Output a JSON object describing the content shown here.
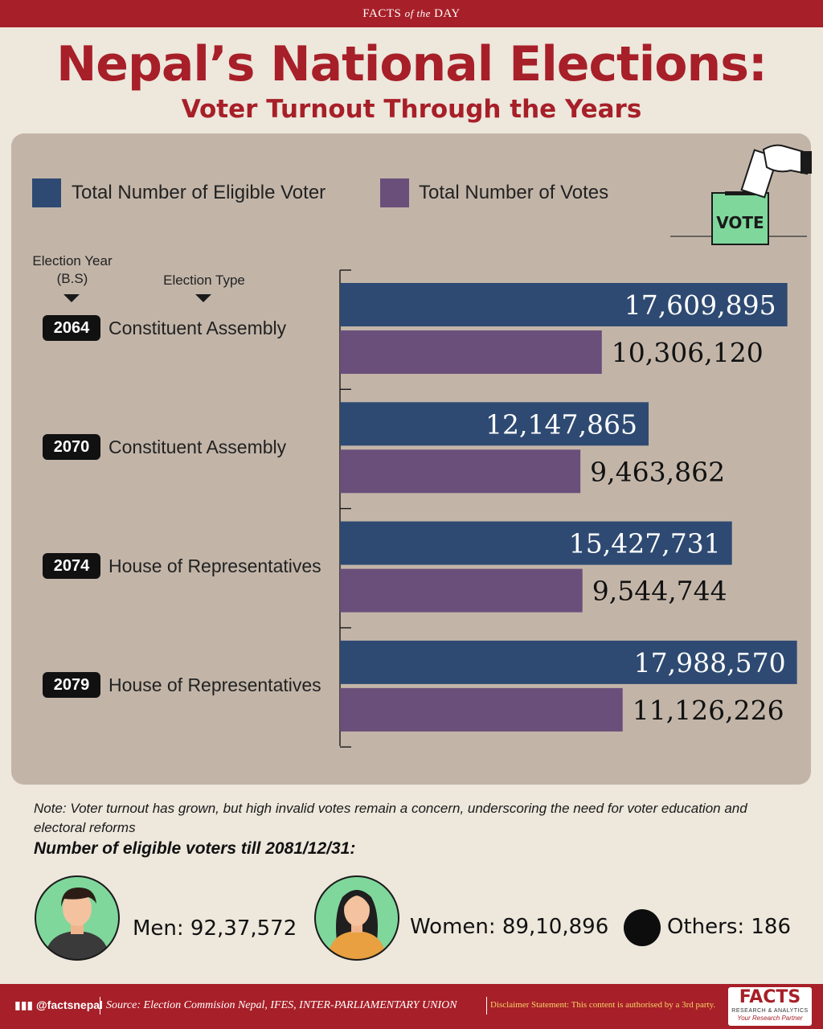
{
  "header": {
    "top_bar_pre": "FACTS",
    "top_bar_italic": "of the",
    "top_bar_post": "DAY",
    "title": "Nepal’s National Elections:",
    "subtitle": "Voter Turnout Through the Years"
  },
  "chart_data": {
    "type": "bar",
    "orientation": "horizontal",
    "legend_position": "top-left",
    "grid": false,
    "categories": [
      "2064",
      "2070",
      "2074",
      "2079"
    ],
    "category_types": [
      "Constituent Assembly",
      "Constituent Assembly",
      "House of Representatives",
      "House of Representatives"
    ],
    "series": [
      {
        "name": "Total Number of Eligible Voter",
        "color": "#2e4a72",
        "values": [
          17609895,
          12147865,
          15427731,
          17988570
        ],
        "labels": [
          "17,609,895",
          "12,147,865",
          "15,427,731",
          "17,988,570"
        ]
      },
      {
        "name": "Total Number of Votes",
        "color": "#6a4f7b",
        "values": [
          10306120,
          9463862,
          9544744,
          11126226
        ],
        "labels": [
          "10,306,120",
          "9,463,862",
          "9,544,744",
          "11,126,226"
        ]
      }
    ],
    "xlim": [
      0,
      18000000
    ],
    "year_header": [
      "Election Year",
      "(B.S)"
    ],
    "type_header": "Election Type"
  },
  "vote_box_label": "VOTE",
  "note": "Note: Voter turnout has grown, but high invalid votes remain a concern, underscoring the need for voter education and electoral reforms",
  "eligible": {
    "title": "Number of eligible voters till 2081/12/31:",
    "men": "Men: 92,37,572",
    "women": "Women: 89,10,896",
    "others": "Others: 186"
  },
  "footer": {
    "handle": "@factsnepal",
    "source": "Source: Election Commision Nepal, IFES, INTER-PARLIAMENTARY UNION",
    "disclaimer": "Disclaimer Statement: This content is authorised by a 3rd party.",
    "logo": "FACTS",
    "logo_sub": "RESEARCH & ANALYTICS",
    "logo_tag": "Your Research Partner"
  },
  "colors": {
    "brand_red": "#a71f28",
    "panel": "#c2b5a8",
    "background": "#ede7dc",
    "vote_box": "#7fd79c"
  }
}
